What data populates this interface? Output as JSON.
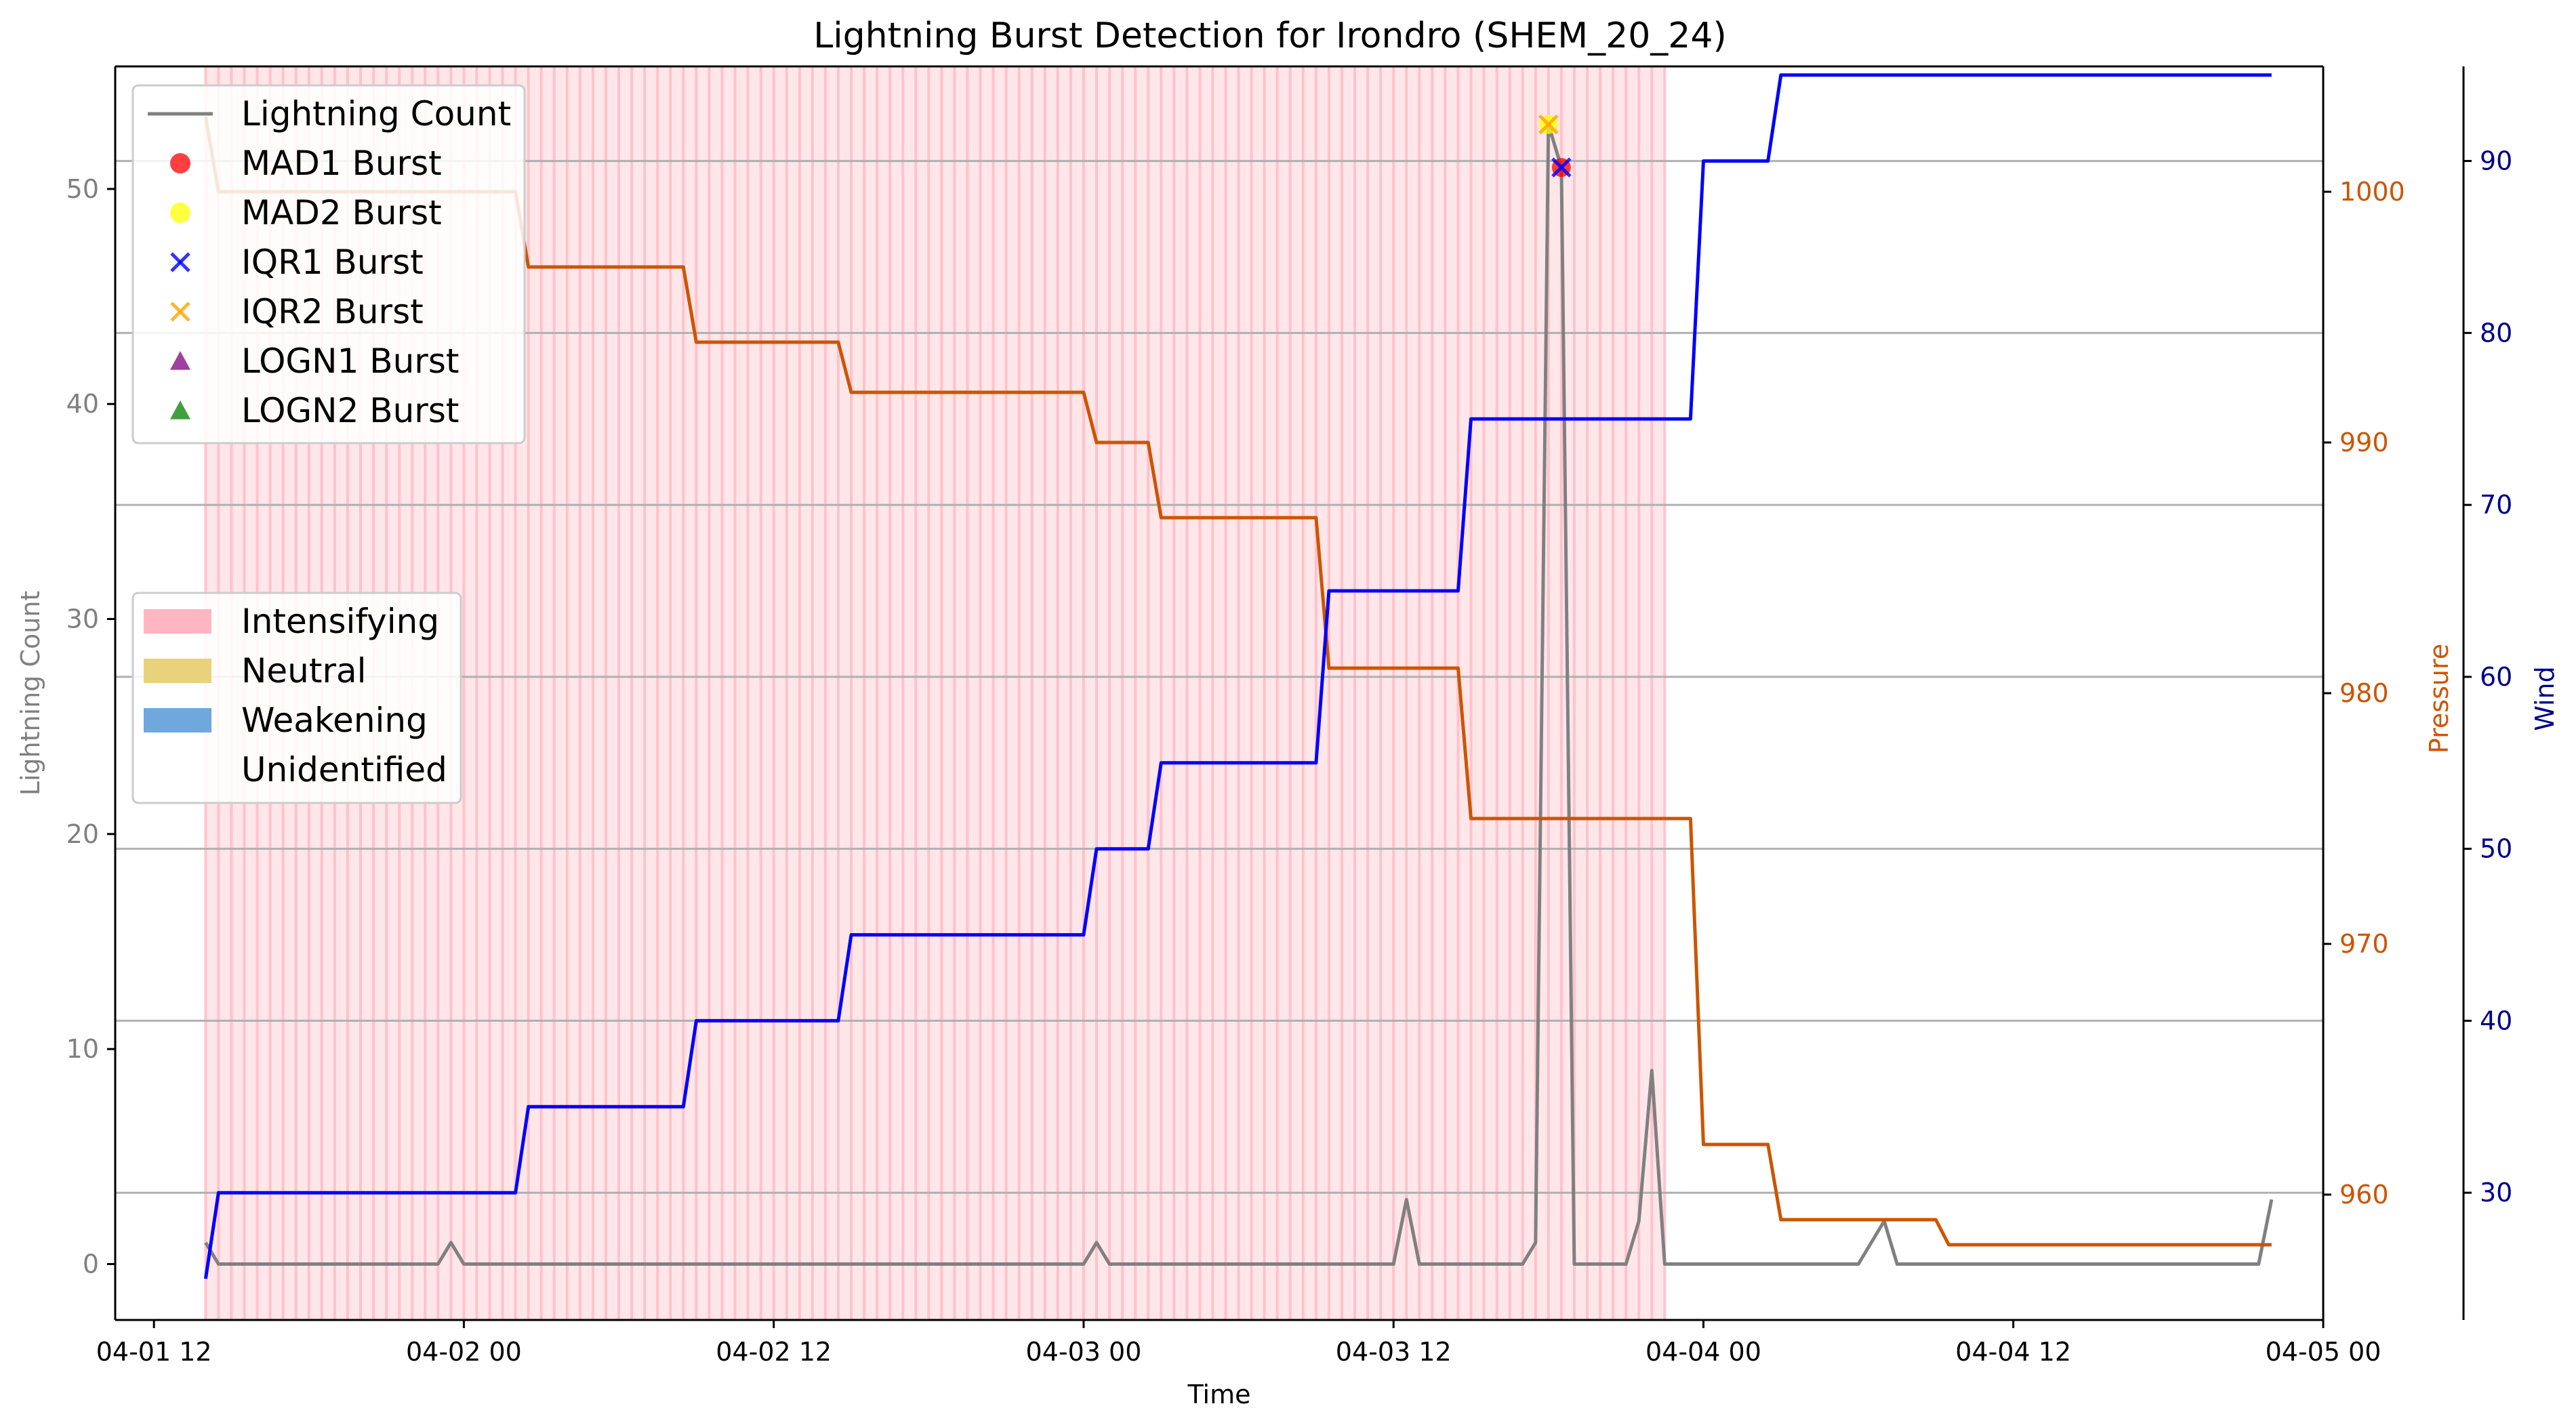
{
  "chart_data": {
    "type": "line",
    "title": "Lightning Burst Detection for Irondro (SHEM_20_24)",
    "xlabel": "Time",
    "x_ticks": [
      "04-01 12",
      "04-02 00",
      "04-02 12",
      "04-03 00",
      "04-03 12",
      "04-04 00",
      "04-04 12",
      "04-05 00"
    ],
    "xlim": [
      "04-01 10:30",
      "04-05 00:00"
    ],
    "axes": {
      "left": {
        "label": "Lightning Count",
        "range": [
          -2.6,
          55.7
        ],
        "ticks": [
          0,
          10,
          20,
          30,
          40,
          50
        ],
        "color": "#808080"
      },
      "right1": {
        "label": "Pressure",
        "range": [
          955,
          1005
        ],
        "ticks": [
          960,
          970,
          980,
          990,
          1000
        ],
        "color": "#cc5500"
      },
      "right2": {
        "label": "Wind",
        "range": [
          22.6,
          95.5
        ],
        "ticks": [
          30,
          40,
          50,
          60,
          70,
          80,
          90
        ],
        "color": "#00008b"
      }
    },
    "grid": "horizontal lines at Wind ticks",
    "series": [
      {
        "name": "Lightning Count",
        "axis": "left",
        "color": "#808080",
        "points": [
          [
            "04-01 14:00",
            1
          ],
          [
            "04-01 14:30",
            0
          ],
          [
            "04-01 23:00",
            0
          ],
          [
            "04-01 23:30",
            1
          ],
          [
            "04-02 00:00",
            0
          ],
          [
            "04-03 00:00",
            0
          ],
          [
            "04-03 00:30",
            1
          ],
          [
            "04-03 01:00",
            0
          ],
          [
            "04-03 12:00",
            0
          ],
          [
            "04-03 12:30",
            3
          ],
          [
            "04-03 13:00",
            0
          ],
          [
            "04-03 17:00",
            0
          ],
          [
            "04-03 17:30",
            1
          ],
          [
            "04-03 18:00",
            53
          ],
          [
            "04-03 18:30",
            51
          ],
          [
            "04-03 19:00",
            0
          ],
          [
            "04-03 21:00",
            0
          ],
          [
            "04-03 21:30",
            2
          ],
          [
            "04-03 22:00",
            9
          ],
          [
            "04-03 22:30",
            0
          ],
          [
            "04-04 06:00",
            0
          ],
          [
            "04-04 07:00",
            2
          ],
          [
            "04-04 07:30",
            0
          ],
          [
            "04-04 09:30",
            0
          ],
          [
            "04-04 21:30",
            0
          ],
          [
            "04-04 22:00",
            3
          ]
        ]
      },
      {
        "name": "Pressure",
        "axis": "right1",
        "color": "#cc5500",
        "points": [
          [
            "04-01 14:00",
            1003
          ],
          [
            "04-01 14:30",
            1000
          ],
          [
            "04-02 02:00",
            1000
          ],
          [
            "04-02 02:30",
            997
          ],
          [
            "04-02 08:30",
            997
          ],
          [
            "04-02 09:00",
            994
          ],
          [
            "04-02 14:30",
            994
          ],
          [
            "04-02 15:00",
            992
          ],
          [
            "04-03 00:00",
            992
          ],
          [
            "04-03 00:30",
            990
          ],
          [
            "04-03 02:30",
            990
          ],
          [
            "04-03 03:00",
            987
          ],
          [
            "04-03 09:00",
            987
          ],
          [
            "04-03 09:30",
            981
          ],
          [
            "04-03 14:30",
            981
          ],
          [
            "04-03 15:00",
            975
          ],
          [
            "04-03 23:30",
            975
          ],
          [
            "04-04 00:00",
            962
          ],
          [
            "04-04 02:30",
            962
          ],
          [
            "04-04 03:00",
            959
          ],
          [
            "04-04 09:00",
            959
          ],
          [
            "04-04 09:30",
            958
          ],
          [
            "04-04 22:00",
            958
          ]
        ]
      },
      {
        "name": "Wind",
        "axis": "right2",
        "color": "#0000ff",
        "points": [
          [
            "04-01 14:00",
            25
          ],
          [
            "04-01 14:30",
            30
          ],
          [
            "04-02 02:00",
            30
          ],
          [
            "04-02 02:30",
            35
          ],
          [
            "04-02 08:30",
            35
          ],
          [
            "04-02 09:00",
            40
          ],
          [
            "04-02 14:30",
            40
          ],
          [
            "04-02 15:00",
            45
          ],
          [
            "04-03 00:00",
            45
          ],
          [
            "04-03 00:30",
            50
          ],
          [
            "04-03 02:30",
            50
          ],
          [
            "04-03 03:00",
            55
          ],
          [
            "04-03 09:00",
            55
          ],
          [
            "04-03 09:30",
            65
          ],
          [
            "04-03 14:30",
            65
          ],
          [
            "04-03 15:00",
            75
          ],
          [
            "04-03 23:30",
            75
          ],
          [
            "04-04 00:00",
            90
          ],
          [
            "04-04 02:30",
            90
          ],
          [
            "04-04 03:00",
            95
          ],
          [
            "04-04 22:00",
            95
          ]
        ]
      }
    ],
    "bursts": [
      {
        "method": "MAD1 Burst",
        "marker": "circle",
        "color": "#ff0000",
        "time": "04-03 18:30",
        "value": 51
      },
      {
        "method": "MAD2 Burst",
        "marker": "circle",
        "color": "#ffff00",
        "time": "04-03 18:00",
        "value": 53
      },
      {
        "method": "IQR1 Burst",
        "marker": "x",
        "color": "#0000ff",
        "time": "04-03 18:30",
        "value": 51
      },
      {
        "method": "IQR2 Burst",
        "marker": "x",
        "color": "#ffa500",
        "time": "04-03 18:00",
        "value": 53
      }
    ],
    "shaded_region": {
      "label": "Intensifying",
      "start": "04-01 14:00",
      "end": "04-03 22:30",
      "color": "#ffb6c1"
    },
    "legend_markers": [
      {
        "label": "Lightning Count",
        "marker": "line",
        "color": "#808080"
      },
      {
        "label": "MAD1 Burst",
        "marker": "circle",
        "color": "#ff0000"
      },
      {
        "label": "MAD2 Burst",
        "marker": "circle",
        "color": "#ffff00"
      },
      {
        "label": "IQR1 Burst",
        "marker": "x",
        "color": "#0000ff"
      },
      {
        "label": "IQR2 Burst",
        "marker": "x",
        "color": "#ffa500"
      },
      {
        "label": "LOGN1 Burst",
        "marker": "triangle",
        "color": "#800080"
      },
      {
        "label": "LOGN2 Burst",
        "marker": "triangle",
        "color": "#008000"
      }
    ],
    "legend_markers_placement": "upper-left",
    "legend_phases": [
      {
        "label": "Intensifying",
        "color": "#ffb6c1"
      },
      {
        "label": "Neutral",
        "color": "#e8d27c"
      },
      {
        "label": "Weakening",
        "color": "#6fa8dc"
      },
      {
        "label": "Unidentified",
        "color": "#ffffff"
      }
    ],
    "legend_phases_placement": "center-left"
  }
}
